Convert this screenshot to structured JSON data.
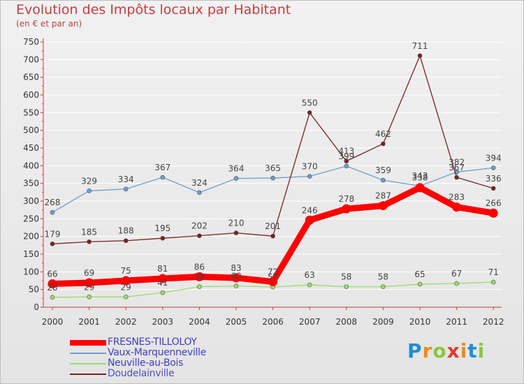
{
  "header": {
    "title": "Evolution des Impôts locaux par Habitant",
    "subtitle": "(en € et par an)"
  },
  "colors": {
    "title": "#c04040",
    "axis": "#c04040",
    "text": "#333333",
    "background": "#ececec"
  },
  "chart_data": {
    "type": "line",
    "title": "Evolution des Impôts locaux par Habitant",
    "subtitle": "(en € et par an)",
    "xlabel": "",
    "ylabel": "",
    "x": [
      "2000",
      "2001",
      "2002",
      "2003",
      "2004",
      "2005",
      "2006",
      "2007",
      "2008",
      "2009",
      "2010",
      "2011",
      "2012"
    ],
    "ylim": [
      0,
      750
    ],
    "yticks": [
      "0",
      "50",
      "100",
      "150",
      "200",
      "250",
      "300",
      "350",
      "400",
      "450",
      "500",
      "550",
      "600",
      "650",
      "700",
      "750"
    ],
    "grid": true,
    "legend": "bottom-left",
    "series": [
      {
        "name": "FRESNES-TILLOLOY",
        "color": "#ff0000",
        "emphasis": true,
        "values": [
          66,
          69,
          75,
          81,
          86,
          83,
          72,
          246,
          278,
          287,
          338,
          283,
          266
        ]
      },
      {
        "name": "Vaux-Marquenneville",
        "color": "#6a9fd0",
        "emphasis": false,
        "values": [
          268,
          329,
          334,
          367,
          324,
          364,
          365,
          370,
          399,
          359,
          343,
          382,
          394
        ]
      },
      {
        "name": "Neuville-au-Bois",
        "color": "#99dd66",
        "emphasis": false,
        "values": [
          28,
          29,
          29,
          41,
          58,
          60,
          57,
          63,
          58,
          58,
          65,
          67,
          71
        ]
      },
      {
        "name": "Doudelainville",
        "color": "#7a2020",
        "emphasis": false,
        "values": [
          179,
          185,
          188,
          195,
          202,
          210,
          201,
          550,
          413,
          462,
          711,
          367,
          336
        ]
      }
    ]
  },
  "legend": {
    "items": [
      {
        "label": "FRESNES-TILLOLOY",
        "color": "#ff0000"
      },
      {
        "label": "Vaux-Marquenneville",
        "color": "#6a9fd0"
      },
      {
        "label": "Neuville-au-Bois",
        "color": "#99dd66"
      },
      {
        "label": "Doudelainville",
        "color": "#7a2020"
      }
    ]
  },
  "logo": {
    "letters": [
      {
        "ch": "P",
        "color": "#1f8fd0"
      },
      {
        "ch": "r",
        "color": "#f08a1c"
      },
      {
        "ch": "o",
        "color": "#8cc63f"
      },
      {
        "ch": "x",
        "color": "#e83a2e"
      },
      {
        "ch": "i",
        "color": "#f08a1c"
      },
      {
        "ch": "t",
        "color": "#1f8fd0"
      },
      {
        "ch": "i",
        "color": "#8cc63f"
      }
    ]
  }
}
